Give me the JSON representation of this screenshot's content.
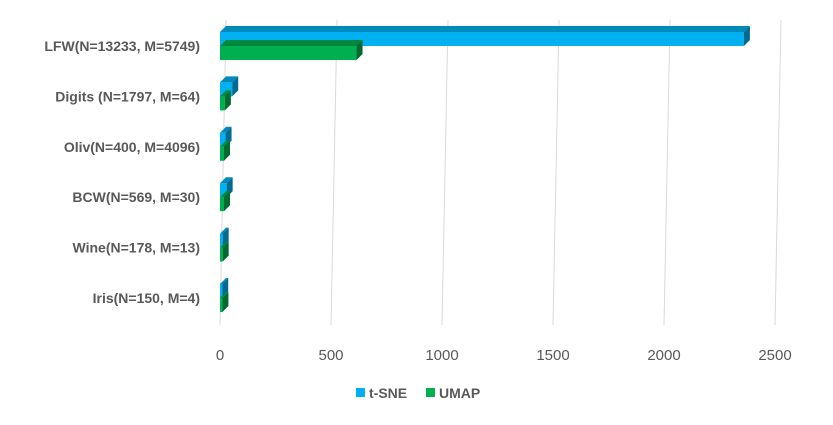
{
  "chart_data": {
    "type": "bar",
    "orientation": "horizontal",
    "categories": [
      "LFW(N=13233, M=5749)",
      "Digits (N=1797, M=64)",
      "Oliv(N=400, M=4096)",
      "BCW(N=569, M=30)",
      "Wine(N=178, M=13)",
      "Iris(N=150, M=4)"
    ],
    "series": [
      {
        "name": "t-SNE",
        "color": "#00b0f0",
        "values": [
          2360,
          55,
          25,
          30,
          12,
          10
        ]
      },
      {
        "name": "UMAP",
        "color": "#00b050",
        "values": [
          615,
          22,
          18,
          18,
          12,
          11
        ]
      }
    ],
    "xlim": [
      0,
      2500
    ],
    "xticks": [
      "0",
      "500",
      "1000",
      "1500",
      "2000",
      "2500"
    ],
    "grid": true,
    "legend_position": "bottom-center",
    "style": "3d-bar"
  }
}
